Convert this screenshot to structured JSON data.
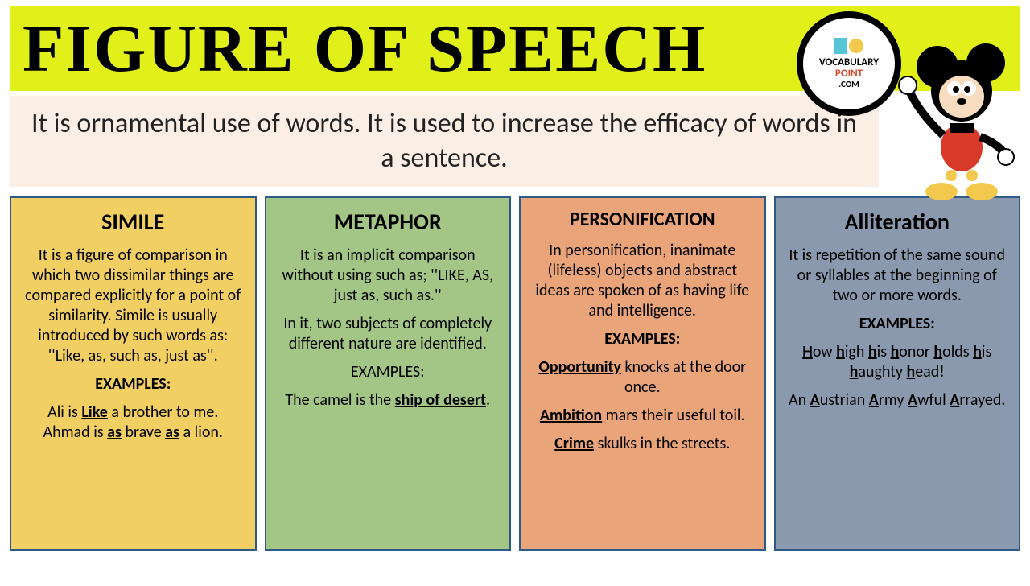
{
  "title": "FIGURE OF SPEECH",
  "subtitle": "It is ornamental use of words. It is used to increase the efficacy of words in a sentence.",
  "logo": {
    "line1": "VOCABULARY",
    "line2": "POINT",
    "line3": ".COM"
  },
  "colors": {
    "title_bg": "#e2f01a",
    "subtitle_bg": "#fbeee4",
    "card_border": "#2e5a8a"
  },
  "cards": [
    {
      "title": "SIMILE",
      "bg": "#f2cf63",
      "definition": "It is a figure of comparison in which two dissimilar things are compared explicitly for a point of similarity. Simile is usually introduced by such words as: ''Like, as, such as, just as''.",
      "examples_label": "EXAMPLES:",
      "ex1_pre": "Ali is ",
      "ex1_u": "Like",
      "ex1_post": " a brother to me.",
      "ex2_a": "Ahmad is ",
      "ex2_u1": "as",
      "ex2_b": " brave ",
      "ex2_u2": "as",
      "ex2_c": " a lion."
    },
    {
      "title": "METAPHOR",
      "bg": "#a3c585",
      "definition1": "It is an implicit comparison without using such as; ''LIKE, AS, just as, such as.''",
      "definition2": "In it, two subjects of completely different nature are identified.",
      "examples_label": "EXAMPLES:",
      "ex1_pre": "The camel is the ",
      "ex1_u": "ship of desert",
      "ex1_post": "."
    },
    {
      "title": "PERSONIFICATION",
      "bg": "#e9a47a",
      "definition": "In personification, inanimate (lifeless) objects and abstract ideas are spoken of as having life and intelligence.",
      "examples_label": "EXAMPLES:",
      "ex1_u": "Opportunity",
      "ex1_post": " knocks at the door once.",
      "ex2_u": "Ambition",
      "ex2_post": " mars their useful toil.",
      "ex3_u": "Crime",
      "ex3_post": " skulks in the streets."
    },
    {
      "title": "Alliteration",
      "bg": "#8a99ad",
      "definition": "It is repetition of the same sound or syllables at the beginning of two or more words.",
      "examples_label": "EXAMPLES:",
      "ex1_html": "How high his honor holds his haughty head!",
      "ex2_html": "An Austrian Army Awful Arrayed."
    }
  ]
}
